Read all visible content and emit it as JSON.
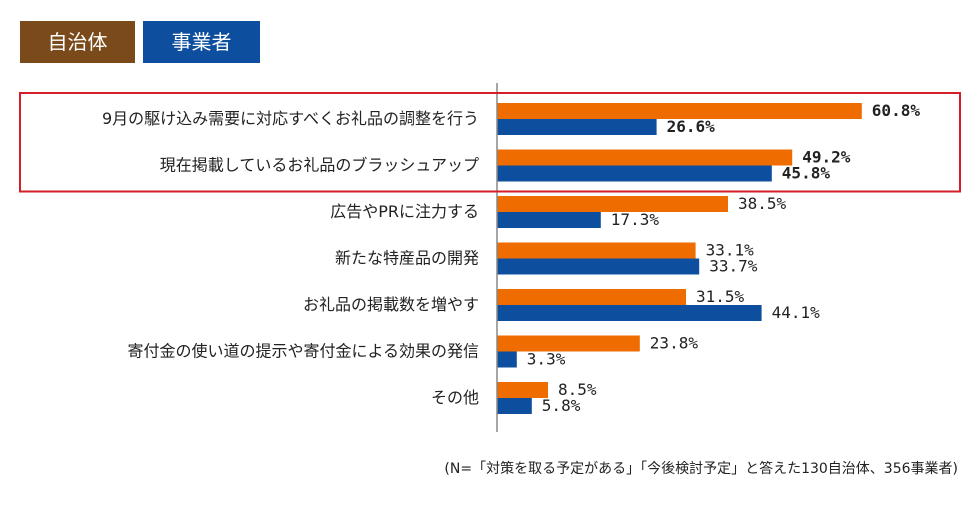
{
  "chart_data": {
    "type": "bar",
    "orientation": "horizontal",
    "categories": [
      "9月の駆け込み需要に対応すべくお礼品の調整を行う",
      "現在掲載しているお礼品のブラッシュアップ",
      "広告やPRに注力する",
      "新たな特産品の開発",
      "お礼品の掲載数を増やす",
      "寄付金の使い道の提示や寄付金による効果の発信",
      "その他"
    ],
    "series": [
      {
        "name": "自治体",
        "color": "#ef6c00",
        "values": [
          60.8,
          49.2,
          38.5,
          33.1,
          31.5,
          23.8,
          8.5
        ],
        "labels": [
          "60.8%",
          "49.2%",
          "38.5%",
          "33.1%",
          "31.5%",
          "23.8%",
          "8.5%"
        ]
      },
      {
        "name": "事業者",
        "color": "#0d4f9e",
        "values": [
          26.6,
          45.8,
          17.3,
          33.7,
          44.1,
          3.3,
          5.8
        ],
        "labels": [
          "26.6%",
          "45.8%",
          "17.3%",
          "33.7%",
          "44.1%",
          "3.3%",
          "5.8%"
        ]
      }
    ],
    "highlighted_categories": [
      0,
      1
    ],
    "highlight_color": "#d31f2a",
    "xlim": [
      0,
      100
    ],
    "grid": false,
    "legend_position": "top-left",
    "legend_colors": [
      "#7b4a1a",
      "#0d4f9e"
    ],
    "note": "(N=「対策を取る予定がある」「今後検討予定」と答えた130自治体、356事業者)"
  }
}
